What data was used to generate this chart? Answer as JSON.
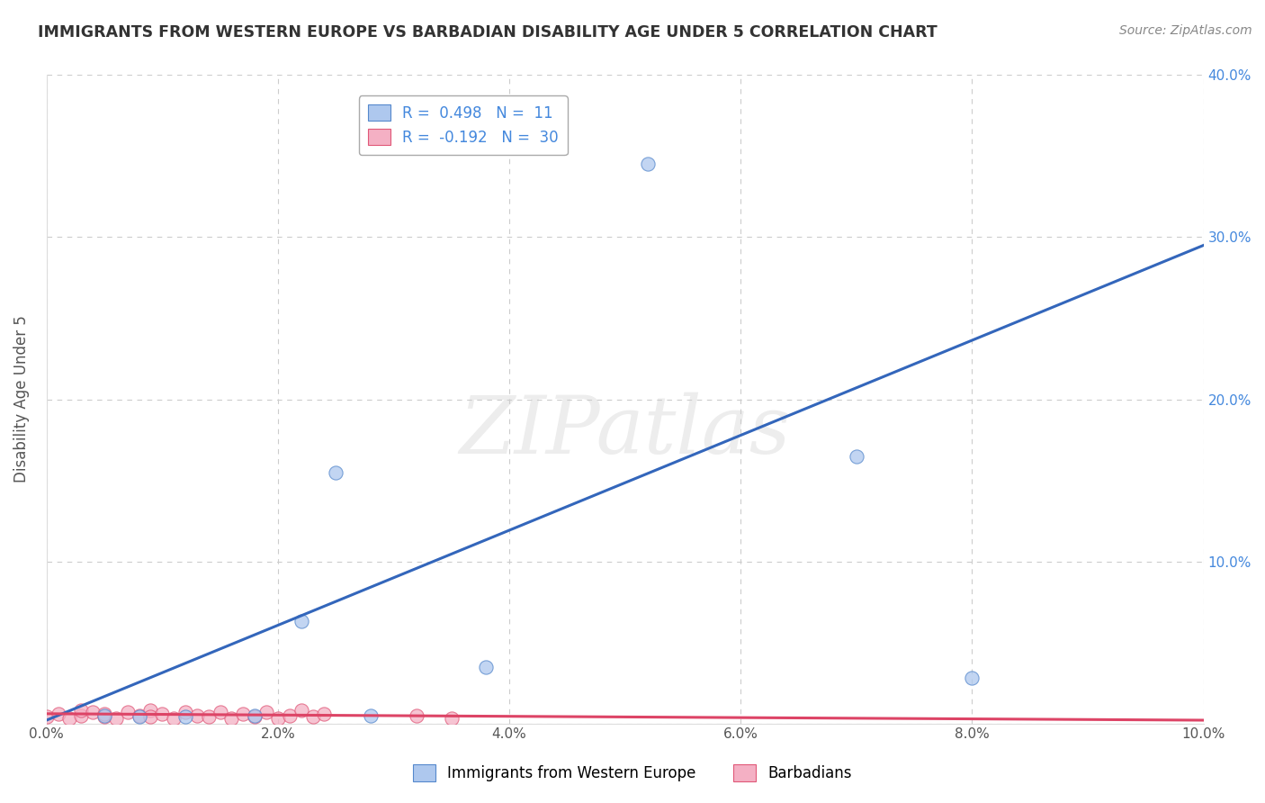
{
  "title": "IMMIGRANTS FROM WESTERN EUROPE VS BARBADIAN DISABILITY AGE UNDER 5 CORRELATION CHART",
  "source": "Source: ZipAtlas.com",
  "ylabel": "Disability Age Under 5",
  "xlim": [
    0.0,
    0.1
  ],
  "ylim": [
    0.0,
    0.4
  ],
  "xticks": [
    0.0,
    0.02,
    0.04,
    0.06,
    0.08,
    0.1
  ],
  "yticks": [
    0.0,
    0.1,
    0.2,
    0.3,
    0.4
  ],
  "xtick_labels": [
    "0.0%",
    "2.0%",
    "4.0%",
    "6.0%",
    "8.0%",
    "10.0%"
  ],
  "ytick_labels": [
    "",
    "10.0%",
    "20.0%",
    "30.0%",
    "40.0%"
  ],
  "blue_R": 0.498,
  "blue_N": 11,
  "pink_R": -0.192,
  "pink_N": 30,
  "blue_fill": "#aec8ee",
  "pink_fill": "#f4b0c4",
  "blue_edge": "#5588cc",
  "pink_edge": "#e05878",
  "blue_line": "#3366bb",
  "pink_line": "#dd4466",
  "blue_scatter_x": [
    0.005,
    0.008,
    0.012,
    0.018,
    0.022,
    0.025,
    0.028,
    0.038,
    0.052,
    0.07,
    0.08
  ],
  "blue_scatter_y": [
    0.005,
    0.004,
    0.004,
    0.005,
    0.063,
    0.155,
    0.005,
    0.035,
    0.345,
    0.165,
    0.028
  ],
  "pink_scatter_x": [
    0.0,
    0.001,
    0.002,
    0.003,
    0.003,
    0.004,
    0.005,
    0.005,
    0.006,
    0.007,
    0.008,
    0.009,
    0.009,
    0.01,
    0.011,
    0.012,
    0.013,
    0.014,
    0.015,
    0.016,
    0.017,
    0.018,
    0.019,
    0.02,
    0.021,
    0.022,
    0.023,
    0.024,
    0.032,
    0.035
  ],
  "pink_scatter_y": [
    0.004,
    0.006,
    0.003,
    0.005,
    0.008,
    0.007,
    0.004,
    0.006,
    0.003,
    0.007,
    0.005,
    0.008,
    0.004,
    0.006,
    0.003,
    0.007,
    0.005,
    0.004,
    0.007,
    0.003,
    0.006,
    0.004,
    0.007,
    0.003,
    0.005,
    0.008,
    0.004,
    0.006,
    0.005,
    0.003
  ],
  "blue_trend_x": [
    0.0,
    0.1
  ],
  "blue_trend_y": [
    0.002,
    0.295
  ],
  "pink_trend_x": [
    0.0,
    0.1
  ],
  "pink_trend_y": [
    0.006,
    0.002
  ],
  "watermark": "ZIPatlas",
  "legend_x1_label": "Immigrants from Western Europe",
  "legend_x2_label": "Barbadians",
  "bg_color": "#ffffff",
  "grid_color": "#cccccc",
  "title_color": "#333333",
  "source_color": "#888888",
  "ylabel_color": "#555555",
  "ytick_color": "#4488dd",
  "xtick_color": "#555555"
}
